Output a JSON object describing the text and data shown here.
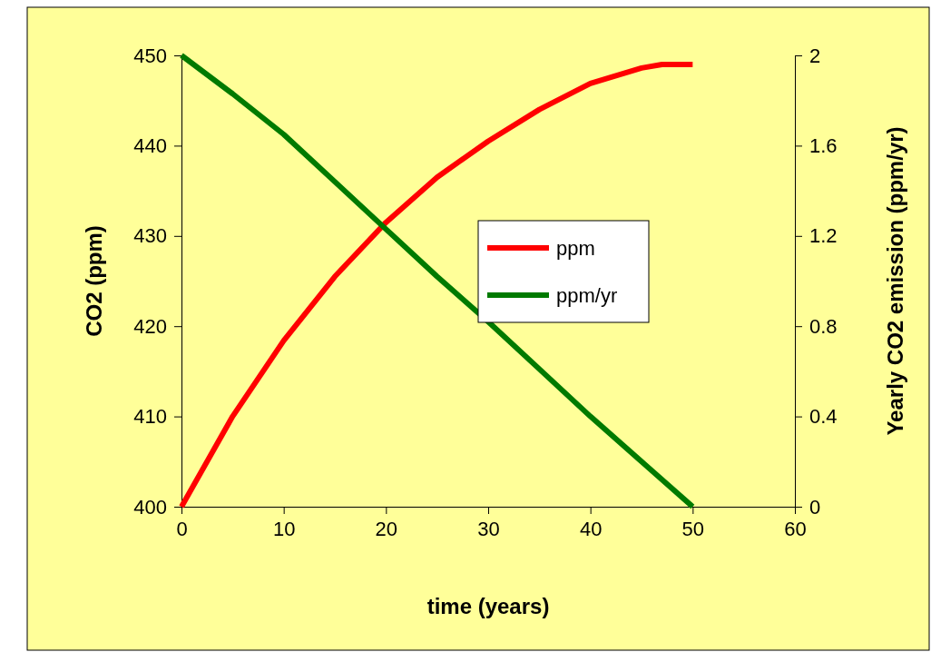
{
  "chart_data": {
    "type": "line",
    "xlabel": "time (years)",
    "ylabel": "CO2 (ppm)",
    "y2label": "Yearly CO2 emission (ppm/yr)",
    "xlim": [
      0,
      60
    ],
    "xticks": [
      0,
      10,
      20,
      30,
      40,
      50,
      60
    ],
    "ylim": [
      400,
      450
    ],
    "yticks": [
      400,
      410,
      420,
      430,
      440,
      450
    ],
    "y2lim": [
      0,
      2
    ],
    "y2ticks": [
      0,
      0.4,
      0.8,
      1.2,
      1.6,
      2
    ],
    "legend": "right",
    "grid": false,
    "marker": "none",
    "line_style": "solid",
    "series": [
      {
        "name": "ppm",
        "color": "#ff0000",
        "x": [
          0,
          5,
          10,
          15,
          20,
          25,
          30,
          35,
          40,
          45,
          47,
          50
        ],
        "values": [
          400,
          410,
          418.4,
          425.5,
          431.5,
          436.5,
          440.5,
          444,
          446.9,
          448.6,
          449,
          449
        ]
      },
      {
        "name": "ppm/yr",
        "color": "#007a00",
        "axis": "y2",
        "x": [
          0,
          5,
          10,
          15,
          20,
          25,
          30,
          35,
          40,
          45,
          50
        ],
        "values": [
          2,
          1.83,
          1.65,
          1.44,
          1.23,
          1.02,
          0.82,
          0.61,
          0.4,
          0.2,
          0
        ]
      }
    ]
  }
}
